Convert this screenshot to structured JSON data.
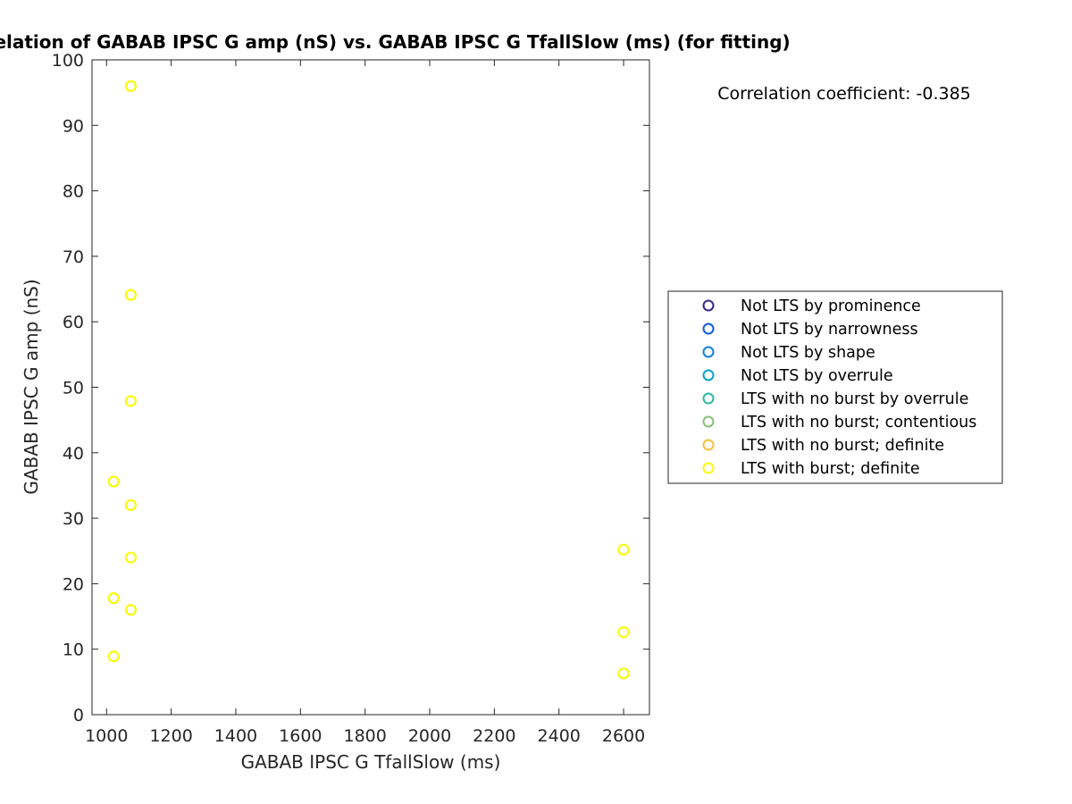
{
  "chart_data": {
    "type": "scatter",
    "title": "Correlation of GABAB IPSC G amp (nS) vs. GABAB IPSC G TfallSlow (ms) (for fitting)",
    "xlabel": "GABAB IPSC G TfallSlow (ms)",
    "ylabel": "GABAB IPSC G amp (nS)",
    "xlim": [
      955,
      2680
    ],
    "ylim": [
      0,
      100
    ],
    "xticks": [
      1000,
      1200,
      1400,
      1600,
      1800,
      2000,
      2200,
      2400,
      2600
    ],
    "yticks": [
      0,
      10,
      20,
      30,
      40,
      50,
      60,
      70,
      80,
      90,
      100
    ],
    "grid": false,
    "annotation": "Correlation coefficient: -0.385",
    "legend_position": "east-outside",
    "series": [
      {
        "name": "Not LTS by prominence",
        "color": "#352a87",
        "x": [],
        "y": []
      },
      {
        "name": "Not LTS by narrowness",
        "color": "#0f5cdd",
        "x": [],
        "y": []
      },
      {
        "name": "Not LTS by shape",
        "color": "#1481d6",
        "x": [],
        "y": []
      },
      {
        "name": "Not LTS by overrule",
        "color": "#06a4ca",
        "x": [],
        "y": []
      },
      {
        "name": "LTS with no burst by overrule",
        "color": "#2eb7a4",
        "x": [],
        "y": []
      },
      {
        "name": "LTS with no burst; contentious",
        "color": "#87bf77",
        "x": [],
        "y": []
      },
      {
        "name": "LTS with no burst; definite",
        "color": "#f9be3e",
        "x": [],
        "y": []
      },
      {
        "name": "LTS with burst; definite",
        "color": "#f9fb0e",
        "x": [
          1075,
          1075,
          1075,
          1022,
          1075,
          1075,
          1022,
          1075,
          1022,
          2600,
          2600,
          2600
        ],
        "y": [
          96,
          64.1,
          47.9,
          35.6,
          32,
          24,
          17.8,
          16,
          8.9,
          25.2,
          12.6,
          6.3
        ]
      }
    ]
  }
}
